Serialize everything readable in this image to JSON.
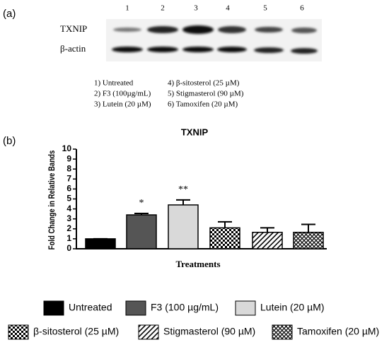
{
  "panel_a": {
    "label": "(a)",
    "lanes": [
      "1",
      "2",
      "3",
      "4",
      "5",
      "6"
    ],
    "rows": [
      "TXNIP",
      "β-actin"
    ],
    "key": [
      "1) Untreated",
      "4) β-sitosterol (25 µM)",
      "2) F3 (100µg/mL)",
      "5) Stigmasterol (90 µM)",
      "3) Lutein (20 µM)",
      "6) Tamoxifen (20 µM)"
    ]
  },
  "chart_data": {
    "type": "bar",
    "panel_label": "(b)",
    "title": "TXNIP",
    "x_label": "Treatments",
    "y_label": "Fold Change in Relative Bands",
    "categories": [
      null
    ],
    "series": [
      {
        "name": "Untreated",
        "color": "#000000",
        "pattern": "solid",
        "values": [
          1.0
        ],
        "errors": [
          0
        ]
      },
      {
        "name": "F3 (100 µg/mL)",
        "color": "#555555",
        "pattern": "solid",
        "values": [
          3.4
        ],
        "errors": [
          0.15
        ],
        "annotation": "*"
      },
      {
        "name": "Lutein (20 µM)",
        "color": "#d9d9d9",
        "pattern": "solid",
        "values": [
          4.4
        ],
        "errors": [
          0.5
        ],
        "annotation": "**"
      },
      {
        "name": "β-sitosterol (25 µM)",
        "color": "#000000",
        "pattern": "checker",
        "values": [
          2.1
        ],
        "errors": [
          0.6
        ]
      },
      {
        "name": "Stigmasterol (90 µM)",
        "color": "#000000",
        "pattern": "diagonal",
        "values": [
          1.65
        ],
        "errors": [
          0.45
        ]
      },
      {
        "name": "Tamoxifen (20 µM)",
        "color": "#000000",
        "pattern": "crosshatch",
        "values": [
          1.65
        ],
        "errors": [
          0.8
        ]
      }
    ],
    "ylim": [
      0,
      10
    ],
    "yticks": [
      0,
      1,
      2,
      3,
      4,
      5,
      6,
      7,
      8,
      9,
      10
    ]
  }
}
